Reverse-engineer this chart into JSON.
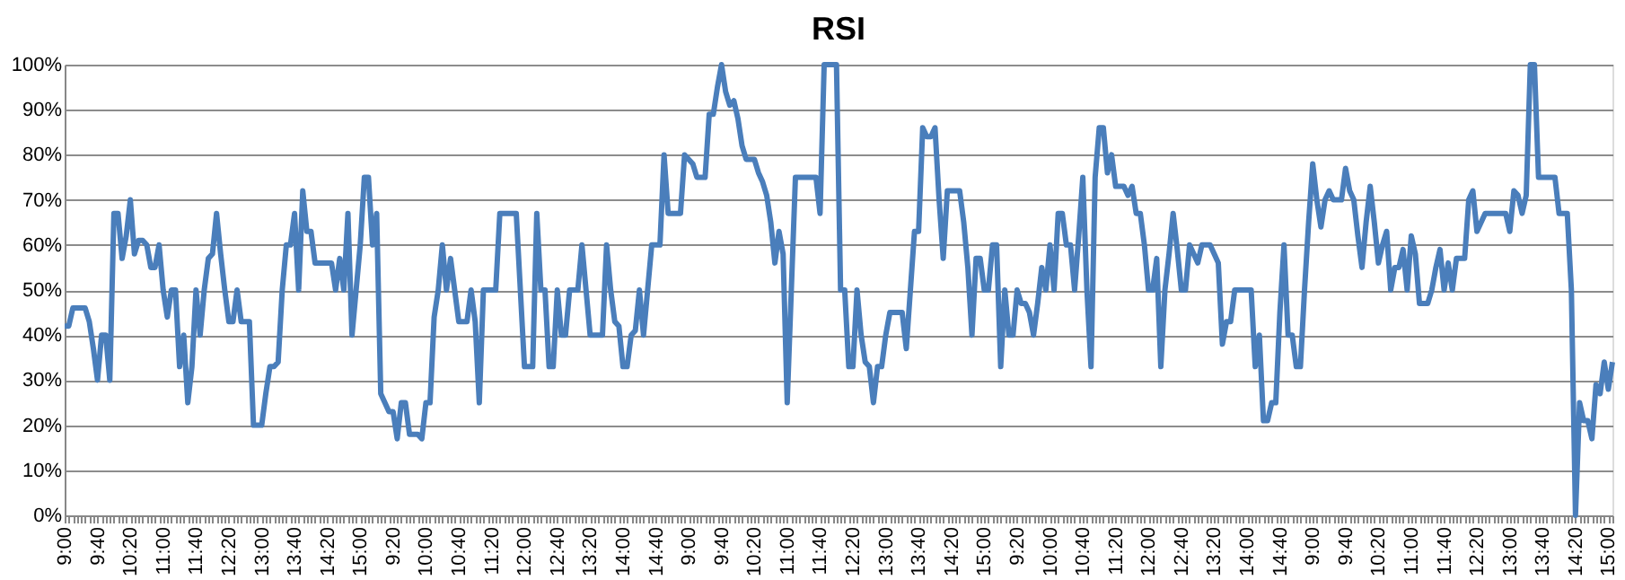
{
  "chart_data": {
    "type": "line",
    "title": "RSI",
    "categories": [
      "9:00",
      null,
      null,
      null,
      null,
      null,
      null,
      null,
      "9:40",
      null,
      null,
      null,
      null,
      null,
      null,
      null,
      "10:20",
      null,
      null,
      null,
      null,
      null,
      null,
      null,
      "11:00",
      null,
      null,
      null,
      null,
      null,
      null,
      null,
      "11:40",
      null,
      null,
      null,
      null,
      null,
      null,
      null,
      "12:20",
      null,
      null,
      null,
      null,
      null,
      null,
      null,
      "13:00",
      null,
      null,
      null,
      null,
      null,
      null,
      null,
      "13:40",
      null,
      null,
      null,
      null,
      null,
      null,
      null,
      "14:20",
      null,
      null,
      null,
      null,
      null,
      null,
      null,
      "15:00",
      null,
      null,
      null,
      null,
      null,
      null,
      null,
      "9:20",
      null,
      null,
      null,
      null,
      null,
      null,
      null,
      "10:00",
      null,
      null,
      null,
      null,
      null,
      null,
      null,
      "10:40",
      null,
      null,
      null,
      null,
      null,
      null,
      null,
      "11:20",
      null,
      null,
      null,
      null,
      null,
      null,
      null,
      "12:00",
      null,
      null,
      null,
      null,
      null,
      null,
      null,
      "12:40",
      null,
      null,
      null,
      null,
      null,
      null,
      null,
      "13:20",
      null,
      null,
      null,
      null,
      null,
      null,
      null,
      "14:00",
      null,
      null,
      null,
      null,
      null,
      null,
      null,
      "14:40",
      null,
      null,
      null,
      null,
      null,
      null,
      null,
      "9:00",
      null,
      null,
      null,
      null,
      null,
      null,
      null,
      "9:40",
      null,
      null,
      null,
      null,
      null,
      null,
      null,
      "10:20",
      null,
      null,
      null,
      null,
      null,
      null,
      null,
      "11:00",
      null,
      null,
      null,
      null,
      null,
      null,
      null,
      "11:40",
      null,
      null,
      null,
      null,
      null,
      null,
      null,
      "12:20",
      null,
      null,
      null,
      null,
      null,
      null,
      null,
      "13:00",
      null,
      null,
      null,
      null,
      null,
      null,
      null,
      "13:40",
      null,
      null,
      null,
      null,
      null,
      null,
      null,
      "14:20",
      null,
      null,
      null,
      null,
      null,
      null,
      null,
      "15:00",
      null,
      null,
      null,
      null,
      null,
      null,
      null,
      "9:20",
      null,
      null,
      null,
      null,
      null,
      null,
      null,
      "10:00",
      null,
      null,
      null,
      null,
      null,
      null,
      null,
      "10:40",
      null,
      null,
      null,
      null,
      null,
      null,
      null,
      "11:20",
      null,
      null,
      null,
      null,
      null,
      null,
      null,
      "12:00",
      null,
      null,
      null,
      null,
      null,
      null,
      null,
      "12:40",
      null,
      null,
      null,
      null,
      null,
      null,
      null,
      "13:20",
      null,
      null,
      null,
      null,
      null,
      null,
      null,
      "14:00",
      null,
      null,
      null,
      null,
      null,
      null,
      null,
      "14:40",
      null,
      null,
      null,
      null,
      null,
      null,
      null,
      "9:00",
      null,
      null,
      null,
      null,
      null,
      null,
      null,
      "9:40",
      null,
      null,
      null,
      null,
      null,
      null,
      null,
      "10:20",
      null,
      null,
      null,
      null,
      null,
      null,
      null,
      "11:00",
      null,
      null,
      null,
      null,
      null,
      null,
      null,
      "11:40",
      null,
      null,
      null,
      null,
      null,
      null,
      null,
      "12:20",
      null,
      null,
      null,
      null,
      null,
      null,
      null,
      "13:00",
      null,
      null,
      null,
      null,
      null,
      null,
      null,
      "13:40",
      null,
      null,
      null,
      null,
      null,
      null,
      null,
      "14:20",
      null,
      null,
      null,
      null,
      null,
      null,
      null,
      "15:00",
      null
    ],
    "series": [
      {
        "color": "#4a7ebb",
        "values": [
          42,
          42,
          46,
          46,
          46,
          46,
          43,
          37,
          30,
          40,
          40,
          30,
          67,
          67,
          57,
          62,
          70,
          58,
          61,
          61,
          60,
          55,
          55,
          60,
          50,
          44,
          50,
          50,
          33,
          40,
          25,
          33,
          50,
          40,
          50,
          57,
          58,
          67,
          58,
          50,
          43,
          43,
          50,
          43,
          43,
          43,
          20,
          20,
          20,
          27,
          33,
          33,
          34,
          50,
          60,
          60,
          67,
          50,
          72,
          63,
          63,
          56,
          56,
          56,
          56,
          56,
          50,
          57,
          50,
          67,
          40,
          50,
          60,
          75,
          75,
          60,
          67,
          27,
          25,
          23,
          23,
          17,
          25,
          25,
          18,
          18,
          18,
          17,
          25,
          25,
          44,
          50,
          60,
          50,
          57,
          50,
          43,
          43,
          43,
          50,
          43,
          25,
          50,
          50,
          50,
          50,
          67,
          67,
          67,
          67,
          67,
          50,
          33,
          33,
          33,
          67,
          50,
          50,
          33,
          33,
          50,
          40,
          40,
          50,
          50,
          50,
          60,
          50,
          40,
          40,
          40,
          40,
          60,
          50,
          43,
          42,
          33,
          33,
          40,
          41,
          50,
          40,
          50,
          60,
          60,
          60,
          80,
          67,
          67,
          67,
          67,
          80,
          79,
          78,
          75,
          75,
          75,
          89,
          89,
          95,
          100,
          94,
          91,
          92,
          88,
          82,
          79,
          79,
          79,
          76,
          74,
          71,
          65,
          56,
          63,
          58,
          25,
          50,
          75,
          75,
          75,
          75,
          75,
          75,
          67,
          100,
          100,
          100,
          100,
          50,
          50,
          33,
          33,
          50,
          40,
          34,
          33,
          25,
          33,
          33,
          40,
          45,
          45,
          45,
          45,
          37,
          50,
          63,
          63,
          86,
          84,
          84,
          86,
          70,
          57,
          72,
          72,
          72,
          72,
          65,
          55,
          40,
          57,
          57,
          50,
          50,
          60,
          60,
          33,
          50,
          40,
          40,
          50,
          47,
          47,
          45,
          40,
          47,
          55,
          50,
          60,
          50,
          67,
          67,
          60,
          60,
          50,
          62,
          75,
          50,
          33,
          75,
          86,
          86,
          76,
          80,
          73,
          73,
          73,
          71,
          73,
          67,
          67,
          60,
          50,
          50,
          57,
          33,
          50,
          58,
          67,
          59,
          50,
          50,
          60,
          58,
          56,
          60,
          60,
          60,
          58,
          56,
          38,
          43,
          43,
          50,
          50,
          50,
          50,
          50,
          33,
          40,
          21,
          21,
          25,
          25,
          45,
          60,
          40,
          40,
          33,
          33,
          50,
          65,
          78,
          70,
          64,
          70,
          72,
          70,
          70,
          70,
          77,
          72,
          70,
          62,
          55,
          65,
          73,
          65,
          56,
          60,
          63,
          50,
          55,
          55,
          59,
          50,
          62,
          58,
          47,
          47,
          47,
          50,
          55,
          59,
          50,
          56,
          50,
          57,
          57,
          57,
          70,
          72,
          63,
          65,
          67,
          67,
          67,
          67,
          67,
          67,
          63,
          72,
          71,
          67,
          71,
          100,
          100,
          75,
          75,
          75,
          75,
          75,
          67,
          67,
          67,
          50,
          0,
          25,
          21,
          21,
          17,
          29,
          27,
          34,
          28,
          34
        ]
      }
    ],
    "ylim": [
      0,
      100
    ],
    "yticks": [
      {
        "value": 0,
        "label": "0%"
      },
      {
        "value": 10,
        "label": "10%"
      },
      {
        "value": 20,
        "label": "20%"
      },
      {
        "value": 30,
        "label": "30%"
      },
      {
        "value": 40,
        "label": "40%"
      },
      {
        "value": 50,
        "label": "50%"
      },
      {
        "value": 60,
        "label": "60%"
      },
      {
        "value": 70,
        "label": "70%"
      },
      {
        "value": 80,
        "label": "80%"
      },
      {
        "value": 90,
        "label": "90%"
      },
      {
        "value": 100,
        "label": "100%"
      }
    ],
    "grid": "y",
    "marker": "none",
    "line_style": "solid"
  }
}
